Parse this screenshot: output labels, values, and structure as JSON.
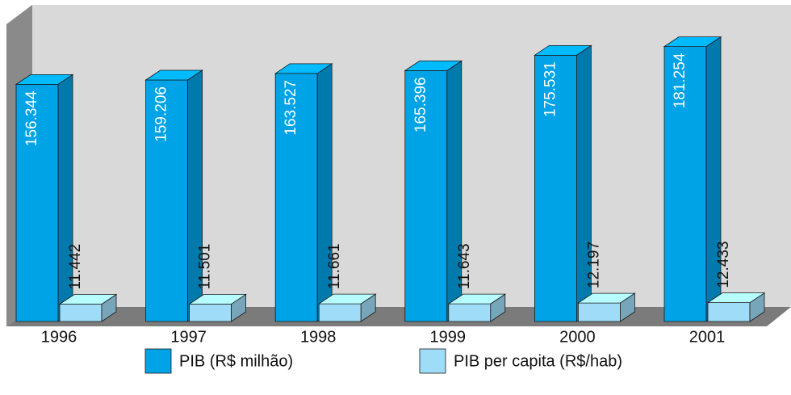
{
  "chart_data": {
    "type": "bar3d",
    "categories": [
      "1996",
      "1997",
      "1998",
      "1999",
      "2000",
      "2001"
    ],
    "series": [
      {
        "name": "PIB (R$ milhão)",
        "color": "#00a3e6",
        "values": [
          156344,
          159206,
          163527,
          165396,
          175531,
          181254
        ],
        "value_labels": [
          "156.344",
          "159.206",
          "163.527",
          "165.396",
          "175.531",
          "181.254"
        ]
      },
      {
        "name": "PIB per capita (R$/hab)",
        "color": "#9fdcf7",
        "values": [
          11442,
          11501,
          11661,
          11643,
          12197,
          12433
        ],
        "value_labels": [
          "11.442",
          "11.501",
          "11.661",
          "11.643",
          "12.197",
          "12.433"
        ]
      }
    ]
  }
}
